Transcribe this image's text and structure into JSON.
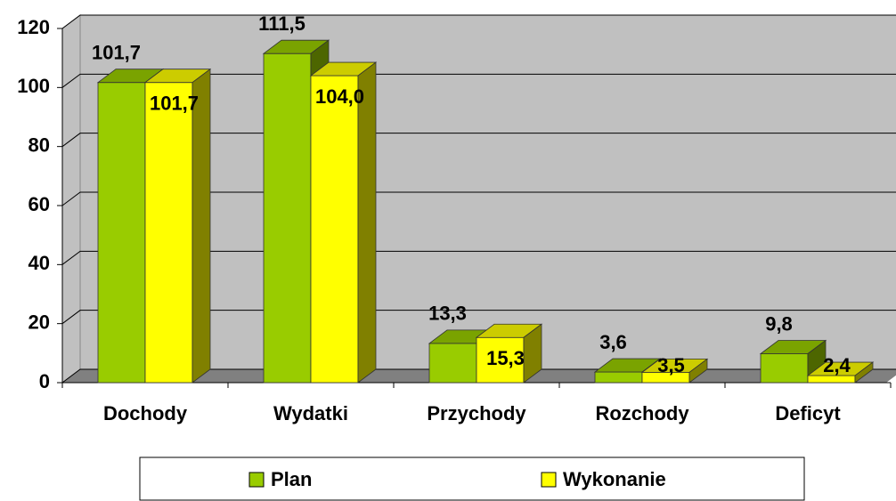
{
  "chart_data": {
    "type": "bar",
    "categories": [
      "Dochody",
      "Wydatki",
      "Przychody",
      "Rozchody",
      "Deficyt"
    ],
    "series": [
      {
        "name": "Plan",
        "color": "#99cc00",
        "values": [
          101.7,
          111.5,
          13.3,
          3.6,
          9.8
        ],
        "value_labels": [
          "101,7",
          "111,5",
          "13,3",
          "3,6",
          "9,8"
        ]
      },
      {
        "name": "Wykonanie",
        "color": "#ffff00",
        "values": [
          101.7,
          104.0,
          15.3,
          3.5,
          2.4
        ],
        "value_labels": [
          "101,7",
          "104,0",
          "15,3",
          "3,5",
          "2,4"
        ]
      }
    ],
    "ylim": [
      0,
      120
    ],
    "yticks": [
      0,
      20,
      40,
      60,
      80,
      100,
      120
    ],
    "grid": true,
    "legend": "bottom"
  }
}
